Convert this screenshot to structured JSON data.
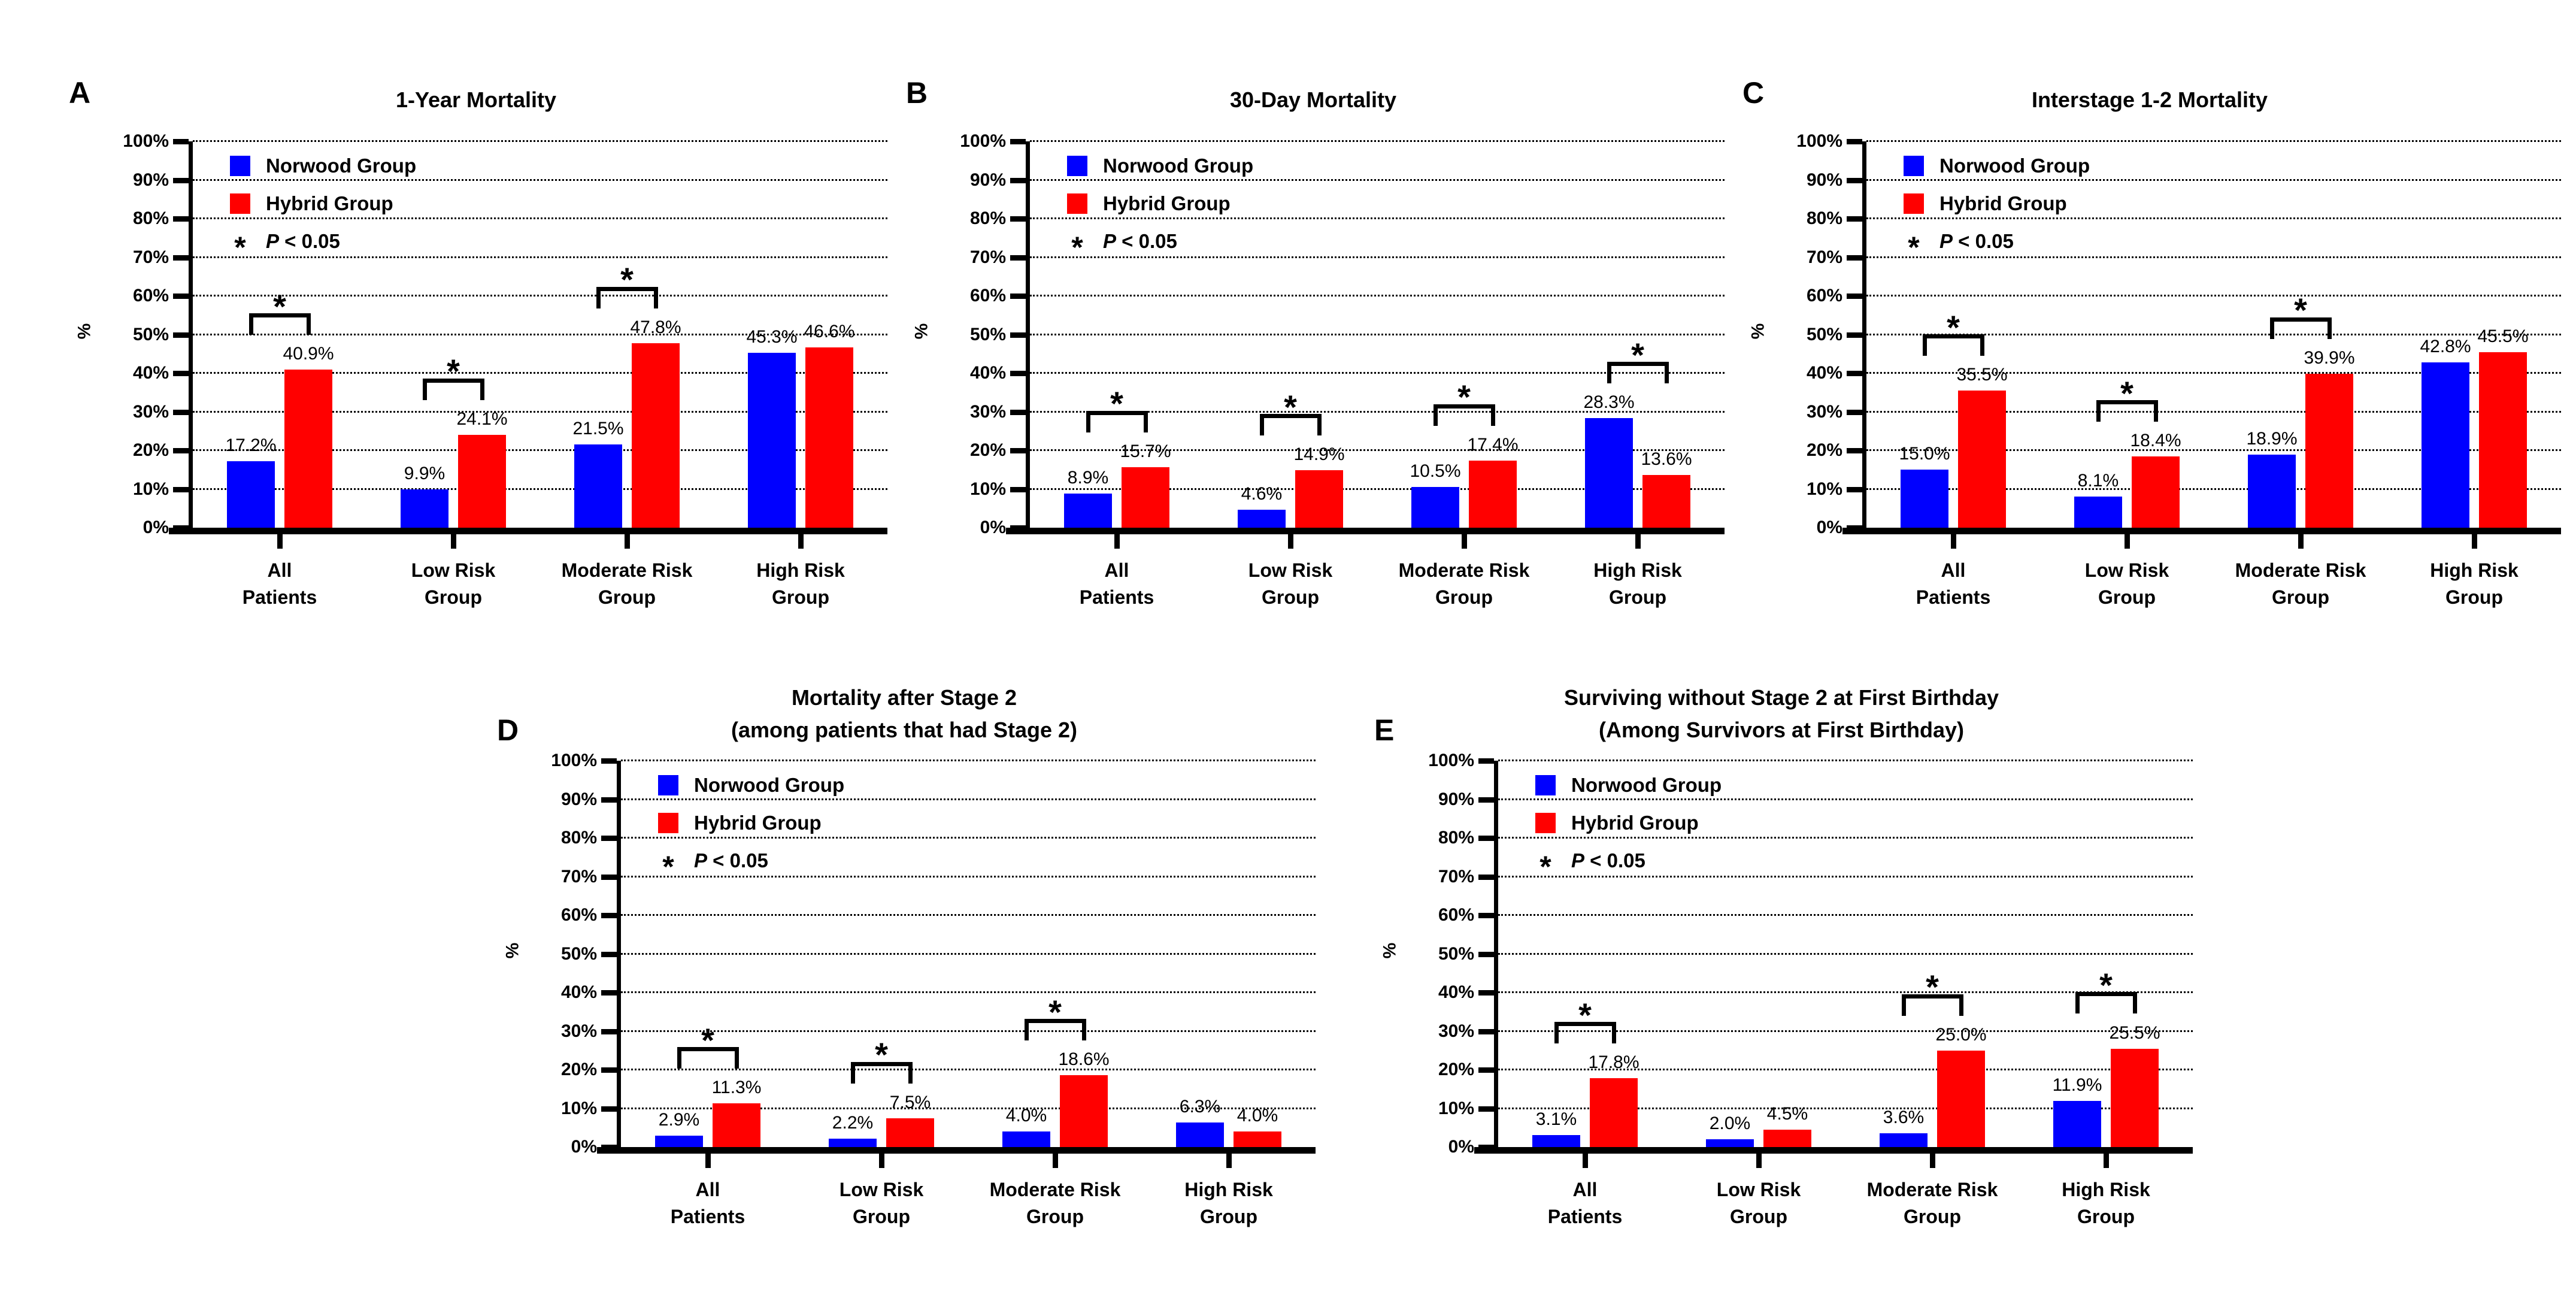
{
  "colors": {
    "norwood": "#0000ff",
    "hybrid": "#ff0000",
    "axis": "#000000",
    "background": "#ffffff"
  },
  "legend": {
    "items": [
      {
        "label": "Norwood Group",
        "color": "#0000ff"
      },
      {
        "label": "Hybrid Group",
        "color": "#ff0000"
      }
    ],
    "sig_symbol": "*",
    "sig_text_p": "P",
    "sig_text_rest": " < 0.05"
  },
  "y_axis": {
    "title": "%",
    "min": 0,
    "max": 100,
    "step": 10,
    "suffix": "%"
  },
  "categories_lines": [
    [
      "All",
      "Patients"
    ],
    [
      "Low Risk",
      "Group"
    ],
    [
      "Moderate Risk",
      "Group"
    ],
    [
      "High Risk",
      "Group"
    ]
  ],
  "chart_data": [
    {
      "id": "panel-a",
      "letter": "A",
      "type": "bar",
      "title_lines": [
        "1-Year Mortality"
      ],
      "categories": [
        "All Patients",
        "Low Risk Group",
        "Moderate Risk Group",
        "High Risk Group"
      ],
      "series": [
        {
          "name": "Norwood Group",
          "color": "#0000ff",
          "values": [
            17.2,
            9.9,
            21.5,
            45.3
          ]
        },
        {
          "name": "Hybrid Group",
          "color": "#ff0000",
          "values": [
            40.9,
            24.1,
            47.8,
            46.6
          ]
        }
      ],
      "significant": [
        true,
        true,
        true,
        false
      ],
      "ylabel": "%",
      "ylim": [
        0,
        100
      ],
      "grid": "dotted",
      "legend_position": "top-left"
    },
    {
      "id": "panel-b",
      "letter": "B",
      "type": "bar",
      "title_lines": [
        "30-Day Mortality"
      ],
      "categories": [
        "All Patients",
        "Low Risk Group",
        "Moderate Risk Group",
        "High Risk Group"
      ],
      "series": [
        {
          "name": "Norwood Group",
          "color": "#0000ff",
          "values": [
            8.9,
            4.6,
            10.5,
            28.3
          ]
        },
        {
          "name": "Hybrid Group",
          "color": "#ff0000",
          "values": [
            15.7,
            14.9,
            17.4,
            13.6
          ]
        }
      ],
      "significant": [
        true,
        true,
        true,
        true
      ],
      "ylabel": "%",
      "ylim": [
        0,
        100
      ],
      "grid": "dotted",
      "legend_position": "top-left"
    },
    {
      "id": "panel-c",
      "letter": "C",
      "type": "bar",
      "title_lines": [
        "Interstage 1-2 Mortality"
      ],
      "categories": [
        "All Patients",
        "Low Risk Group",
        "Moderate Risk Group",
        "High Risk Group"
      ],
      "series": [
        {
          "name": "Norwood Group",
          "color": "#0000ff",
          "values": [
            15.0,
            8.1,
            18.9,
            42.8
          ]
        },
        {
          "name": "Hybrid Group",
          "color": "#ff0000",
          "values": [
            35.5,
            18.4,
            39.9,
            45.5
          ]
        }
      ],
      "significant": [
        true,
        true,
        true,
        false
      ],
      "ylabel": "%",
      "ylim": [
        0,
        100
      ],
      "grid": "dotted",
      "legend_position": "top-left"
    },
    {
      "id": "panel-d",
      "letter": "D",
      "type": "bar",
      "title_lines": [
        "Mortality after Stage 2",
        "(among patients that had Stage 2)"
      ],
      "categories": [
        "All Patients",
        "Low Risk Group",
        "Moderate Risk Group",
        "High Risk Group"
      ],
      "series": [
        {
          "name": "Norwood Group",
          "color": "#0000ff",
          "values": [
            2.9,
            2.2,
            4.0,
            6.3
          ]
        },
        {
          "name": "Hybrid Group",
          "color": "#ff0000",
          "values": [
            11.3,
            7.5,
            18.6,
            4.0
          ]
        }
      ],
      "significant": [
        true,
        true,
        true,
        false
      ],
      "ylabel": "%",
      "ylim": [
        0,
        100
      ],
      "grid": "dotted",
      "legend_position": "top-left"
    },
    {
      "id": "panel-e",
      "letter": "E",
      "type": "bar",
      "title_lines": [
        "Surviving without Stage 2 at First Birthday",
        "(Among Survivors at First Birthday)"
      ],
      "categories": [
        "All Patients",
        "Low Risk Group",
        "Moderate Risk Group",
        "High Risk Group"
      ],
      "series": [
        {
          "name": "Norwood Group",
          "color": "#0000ff",
          "values": [
            3.1,
            2.0,
            3.6,
            11.9
          ]
        },
        {
          "name": "Hybrid Group",
          "color": "#ff0000",
          "values": [
            17.8,
            4.5,
            25.0,
            25.5
          ]
        }
      ],
      "significant": [
        true,
        false,
        true,
        true
      ],
      "ylabel": "%",
      "ylim": [
        0,
        100
      ],
      "grid": "dotted",
      "legend_position": "top-left"
    }
  ]
}
